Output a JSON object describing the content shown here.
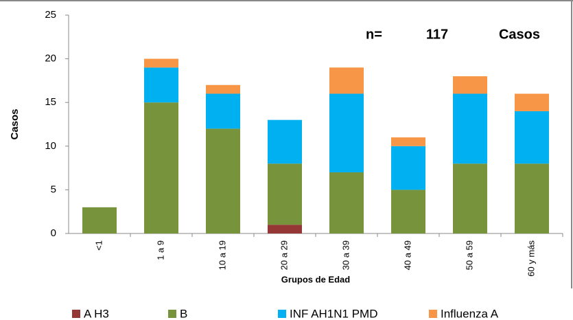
{
  "chart_data": {
    "type": "stacked_bar",
    "x_label": "Grupos de Edad",
    "y_label": "Casos",
    "annotations": [
      "n=",
      "117",
      "Casos"
    ],
    "categories": [
      "<1",
      "1 a 9",
      "10 a 19",
      "20 a 29",
      "30 a 39",
      "40 a 49",
      "50 a 59",
      "60 y más"
    ],
    "series": [
      {
        "name": "A H3",
        "color": "#953735",
        "values": [
          0,
          0,
          0,
          1,
          0,
          0,
          0,
          0
        ]
      },
      {
        "name": "B",
        "color": "#77933c",
        "values": [
          3,
          15,
          12,
          7,
          7,
          5,
          8,
          8
        ]
      },
      {
        "name": "INF AH1N1 PMD",
        "color": "#00b0f0",
        "values": [
          0,
          4,
          4,
          5,
          9,
          5,
          8,
          6
        ]
      },
      {
        "name": "Influenza A",
        "color": "#f79646",
        "values": [
          0,
          1,
          1,
          0,
          3,
          1,
          2,
          2
        ]
      }
    ],
    "ylim": [
      0,
      25
    ],
    "yticks": [
      0,
      5,
      10,
      15,
      20,
      25
    ],
    "grid": false,
    "legend": "bottom"
  }
}
